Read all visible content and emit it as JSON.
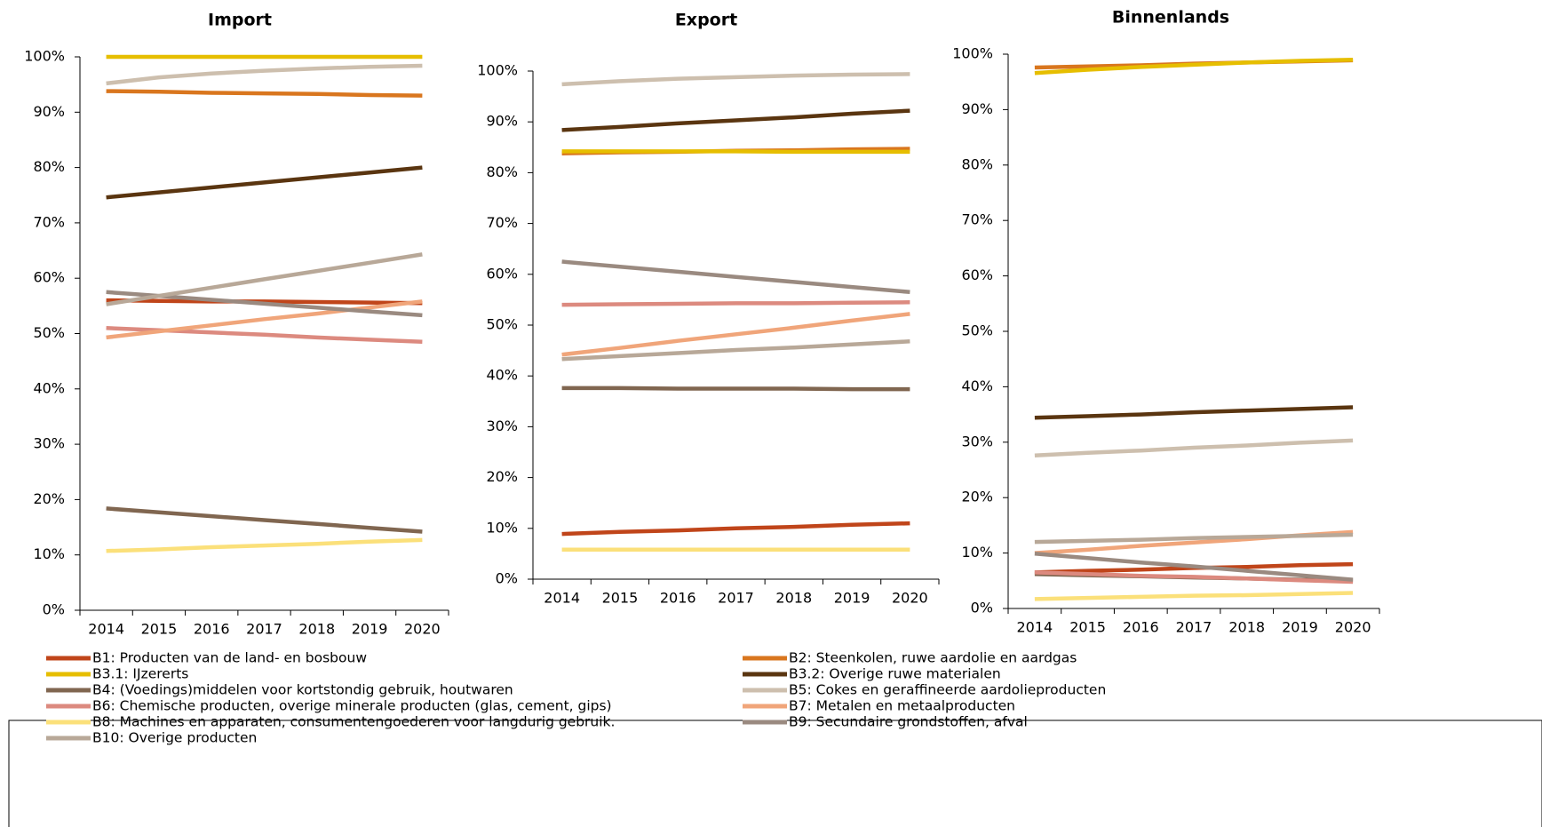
{
  "chart_data": [
    {
      "type": "line",
      "title": "Import",
      "categories": [
        "2014",
        "2015",
        "2016",
        "2017",
        "2018",
        "2019",
        "2020"
      ],
      "ylim": [
        0,
        100
      ],
      "yticks": [
        {
          "value": 0,
          "label": "0%"
        },
        {
          "value": 10,
          "label": "10%"
        },
        {
          "value": 20,
          "label": "20%"
        },
        {
          "value": 30,
          "label": "30%"
        },
        {
          "value": 40,
          "label": "40%"
        },
        {
          "value": 50,
          "label": "50%"
        },
        {
          "value": 60,
          "label": "60%"
        },
        {
          "value": 70,
          "label": "70%"
        },
        {
          "value": 80,
          "label": "80%"
        },
        {
          "value": 90,
          "label": "90%"
        },
        {
          "value": 100,
          "label": "100%"
        }
      ],
      "series": [
        {
          "name": "B1: Producten van de land- en bosbouw",
          "color": "#c0451a",
          "values": [
            56,
            55.9,
            55.8,
            55.8,
            55.7,
            55.6,
            55.5
          ]
        },
        {
          "name": "B2: Steenkolen, ruwe aardolie en aardgas",
          "color": "#d9761e",
          "values": [
            93.8,
            93.7,
            93.5,
            93.4,
            93.3,
            93.1,
            93
          ]
        },
        {
          "name": "B3.1: IJzererts",
          "color": "#e6be00",
          "values": [
            100,
            100,
            100,
            100,
            100,
            100,
            100
          ]
        },
        {
          "name": "B3.2: Overige ruwe materialen",
          "color": "#5a3510",
          "values": [
            74.6,
            75.5,
            76.4,
            77.3,
            78.2,
            79.1,
            80
          ]
        },
        {
          "name": "B4: (Voedings)middelen voor kortstondig gebruik, houtwaren",
          "color": "#806650",
          "values": [
            18.4,
            17.7,
            17,
            16.3,
            15.6,
            14.9,
            14.2
          ]
        },
        {
          "name": "B5: Cokes en geraffineerde aardolieproducten",
          "color": "#cdbfae",
          "values": [
            95.2,
            96.3,
            97,
            97.5,
            97.9,
            98.2,
            98.4
          ]
        },
        {
          "name": "B6: Chemische producten, overige minerale producten (glas, cement, gips)",
          "color": "#dc8a7f",
          "values": [
            51,
            50.6,
            50.2,
            49.8,
            49.3,
            48.9,
            48.5
          ]
        },
        {
          "name": "B7: Metalen en metaalproducten",
          "color": "#f0a57a",
          "values": [
            49.3,
            50.4,
            51.5,
            52.6,
            53.6,
            54.7,
            55.8
          ]
        },
        {
          "name": "B8: Machines en apparaten, consumentengoederen voor langdurig gebruik.",
          "color": "#fbe07a",
          "values": [
            10.7,
            11,
            11.4,
            11.7,
            12,
            12.4,
            12.7
          ]
        },
        {
          "name": "B9: Secundaire grondstoffen, afval",
          "color": "#9a8a80",
          "values": [
            57.5,
            56.8,
            56.1,
            55.4,
            54.7,
            54,
            53.3
          ]
        },
        {
          "name": "B10: Overige producten",
          "color": "#b8a898",
          "values": [
            55.3,
            56.8,
            58.3,
            59.8,
            61.3,
            62.8,
            64.3
          ]
        }
      ]
    },
    {
      "type": "line",
      "title": "Export",
      "categories": [
        "2014",
        "2015",
        "2016",
        "2017",
        "2018",
        "2019",
        "2020"
      ],
      "ylim": [
        0,
        100
      ],
      "yticks": [
        {
          "value": 0,
          "label": "0%"
        },
        {
          "value": 10,
          "label": "10%"
        },
        {
          "value": 20,
          "label": "20%"
        },
        {
          "value": 30,
          "label": "30%"
        },
        {
          "value": 40,
          "label": "40%"
        },
        {
          "value": 50,
          "label": "50%"
        },
        {
          "value": 60,
          "label": "60%"
        },
        {
          "value": 70,
          "label": "70%"
        },
        {
          "value": 80,
          "label": "80%"
        },
        {
          "value": 90,
          "label": "90%"
        },
        {
          "value": 100,
          "label": "100%"
        }
      ],
      "series": [
        {
          "values": [
            8.9,
            9.3,
            9.6,
            10,
            10.3,
            10.7,
            11
          ]
        },
        {
          "values": [
            83.8,
            84,
            84.1,
            84.3,
            84.4,
            84.6,
            84.7
          ]
        },
        {
          "values": [
            84.2,
            84.2,
            84.2,
            84.2,
            84.1,
            84.1,
            84.1
          ]
        },
        {
          "values": [
            88.4,
            89,
            89.7,
            90.3,
            90.9,
            91.6,
            92.2
          ]
        },
        {
          "values": [
            37.6,
            37.6,
            37.5,
            37.5,
            37.5,
            37.4,
            37.4
          ]
        },
        {
          "values": [
            97.4,
            98,
            98.5,
            98.8,
            99.1,
            99.3,
            99.4
          ]
        },
        {
          "values": [
            54,
            54.1,
            54.2,
            54.3,
            54.3,
            54.4,
            54.5
          ]
        },
        {
          "values": [
            44.2,
            45.5,
            46.9,
            48.2,
            49.5,
            50.9,
            52.2
          ]
        },
        {
          "values": [
            5.8,
            5.8,
            5.8,
            5.8,
            5.8,
            5.8,
            5.8
          ]
        },
        {
          "values": [
            62.5,
            61.5,
            60.5,
            59.5,
            58.5,
            57.5,
            56.5
          ]
        },
        {
          "values": [
            43.3,
            43.9,
            44.5,
            45.1,
            45.6,
            46.2,
            46.8
          ]
        }
      ]
    },
    {
      "type": "line",
      "title": "Binnenlands",
      "categories": [
        "2014",
        "2015",
        "2016",
        "2017",
        "2018",
        "2019",
        "2020"
      ],
      "ylim": [
        0,
        100
      ],
      "yticks": [
        {
          "value": 0,
          "label": "0%"
        },
        {
          "value": 10,
          "label": "10%"
        },
        {
          "value": 20,
          "label": "20%"
        },
        {
          "value": 30,
          "label": "30%"
        },
        {
          "value": 40,
          "label": "40%"
        },
        {
          "value": 50,
          "label": "50%"
        },
        {
          "value": 60,
          "label": "60%"
        },
        {
          "value": 70,
          "label": "70%"
        },
        {
          "value": 80,
          "label": "80%"
        },
        {
          "value": 90,
          "label": "90%"
        },
        {
          "value": 100,
          "label": "100%"
        }
      ],
      "series": [
        {
          "values": [
            6.5,
            6.8,
            7,
            7.3,
            7.5,
            7.8,
            8
          ]
        },
        {
          "values": [
            97.6,
            97.8,
            98,
            98.3,
            98.5,
            98.7,
            98.9
          ]
        },
        {
          "values": [
            96.6,
            97.2,
            97.7,
            98.1,
            98.5,
            98.8,
            99
          ]
        },
        {
          "values": [
            34.4,
            34.7,
            35,
            35.4,
            35.7,
            36,
            36.3
          ]
        },
        {
          "values": [
            6.2,
            6,
            5.8,
            5.6,
            5.4,
            5.2,
            5
          ]
        },
        {
          "values": [
            27.6,
            28.1,
            28.5,
            29,
            29.4,
            29.9,
            30.3
          ]
        },
        {
          "values": [
            6.5,
            6.2,
            5.9,
            5.7,
            5.4,
            5.1,
            4.8
          ]
        },
        {
          "values": [
            10,
            10.6,
            11.3,
            11.9,
            12.5,
            13.2,
            13.8
          ]
        },
        {
          "values": [
            1.7,
            1.9,
            2.1,
            2.3,
            2.4,
            2.6,
            2.8
          ]
        },
        {
          "values": [
            9.9,
            9.1,
            8.3,
            7.6,
            6.8,
            6,
            5.2
          ]
        },
        {
          "values": [
            12,
            12.2,
            12.4,
            12.7,
            12.9,
            13.1,
            13.3
          ]
        }
      ]
    }
  ]
}
